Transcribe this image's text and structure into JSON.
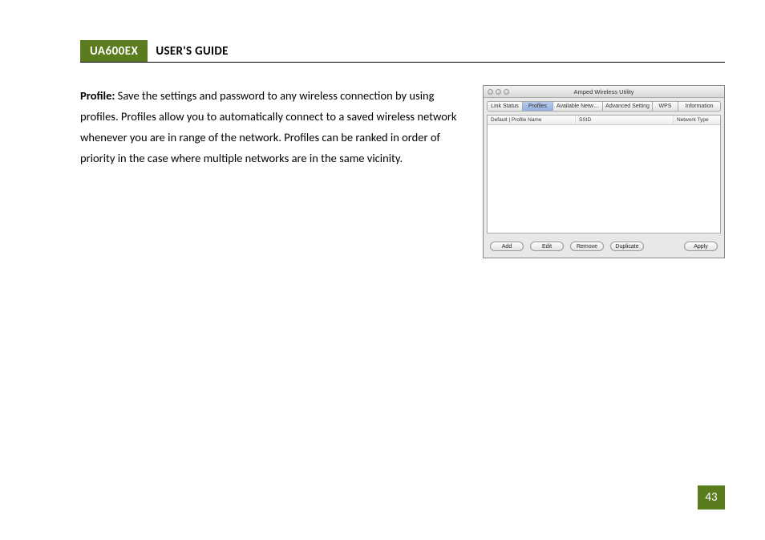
{
  "header": {
    "model": "UA600EX",
    "title": "USER'S GUIDE"
  },
  "body": {
    "label": "Profile:",
    "text": " Save the settings and password to any wireless connection by using profiles.  Profiles allow you to automatically connect to a saved wireless network whenever you are in range of the network.  Profiles can be ranked in order of priority in the case where multiple networks are in the same vicinity."
  },
  "screenshot": {
    "window_title": "Amped Wireless Utility",
    "tabs": [
      "Link Status",
      "Profiles",
      "Available Netw…",
      "Advanced Setting",
      "WPS",
      "Information"
    ],
    "active_tab_index": 1,
    "columns": [
      "Default | Profile Name",
      "SSID",
      "Network Type"
    ],
    "buttons": [
      "Add",
      "Edit",
      "Remove",
      "Duplicate",
      "Apply"
    ]
  },
  "page_number": "43",
  "colors": {
    "accent_green": "#5a7c1f",
    "text": "#000000",
    "bg": "#ffffff"
  }
}
